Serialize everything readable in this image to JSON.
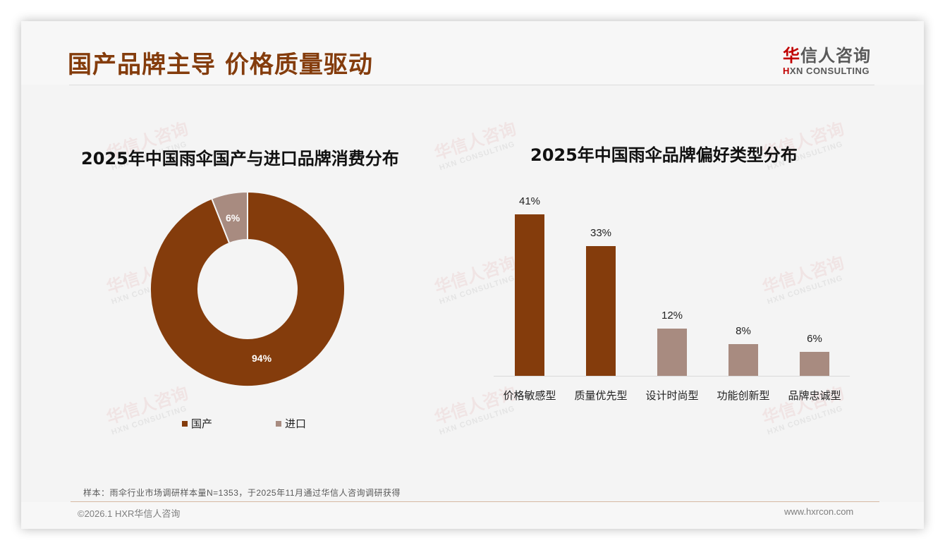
{
  "header": {
    "title": "国产品牌主导 价格质量驱动",
    "logo_cn_red": "华",
    "logo_cn_rest": "信人咨询",
    "logo_en_red": "H",
    "logo_en_rest": "XN CONSULTING"
  },
  "watermark": {
    "cn": "华信人咨询",
    "en": "HXN CONSULTING"
  },
  "colors": {
    "primary": "#843c0c",
    "secondary": "#a88b80",
    "background": "#f4f4f4"
  },
  "left_chart": {
    "title": "2025年中国雨伞国产与进口品牌消费分布",
    "slices": [
      {
        "label": "国产",
        "value": 94,
        "display": "94%",
        "color": "#843c0c"
      },
      {
        "label": "进口",
        "value": 6,
        "display": "6%",
        "color": "#a88b80"
      }
    ]
  },
  "right_chart": {
    "title": "2025年中国雨伞品牌偏好类型分布",
    "bars": [
      {
        "label": "价格敏感型",
        "value": 41,
        "display": "41%",
        "color": "#843c0c"
      },
      {
        "label": "质量优先型",
        "value": 33,
        "display": "33%",
        "color": "#843c0c"
      },
      {
        "label": "设计时尚型",
        "value": 12,
        "display": "12%",
        "color": "#a88b80"
      },
      {
        "label": "功能创新型",
        "value": 8,
        "display": "8%",
        "color": "#a88b80"
      },
      {
        "label": "品牌忠诚型",
        "value": 6,
        "display": "6%",
        "color": "#a88b80"
      }
    ]
  },
  "footer": {
    "note": "样本：雨伞行业市场调研样本量N=1353，于2025年11月通过华信人咨询调研获得",
    "copyright": "©2026.1 HXR华信人咨询",
    "website": "www.hxrcon.com"
  },
  "chart_data": [
    {
      "type": "pie",
      "title": "2025年中国雨伞国产与进口品牌消费分布",
      "categories": [
        "国产",
        "进口"
      ],
      "values": [
        94,
        6
      ],
      "unit": "%",
      "donut": true,
      "legend_position": "bottom"
    },
    {
      "type": "bar",
      "title": "2025年中国雨伞品牌偏好类型分布",
      "categories": [
        "价格敏感型",
        "质量优先型",
        "设计时尚型",
        "功能创新型",
        "品牌忠诚型"
      ],
      "values": [
        41,
        33,
        12,
        8,
        6
      ],
      "unit": "%",
      "xlabel": "",
      "ylabel": "",
      "grid": false,
      "data_labels": true
    }
  ]
}
